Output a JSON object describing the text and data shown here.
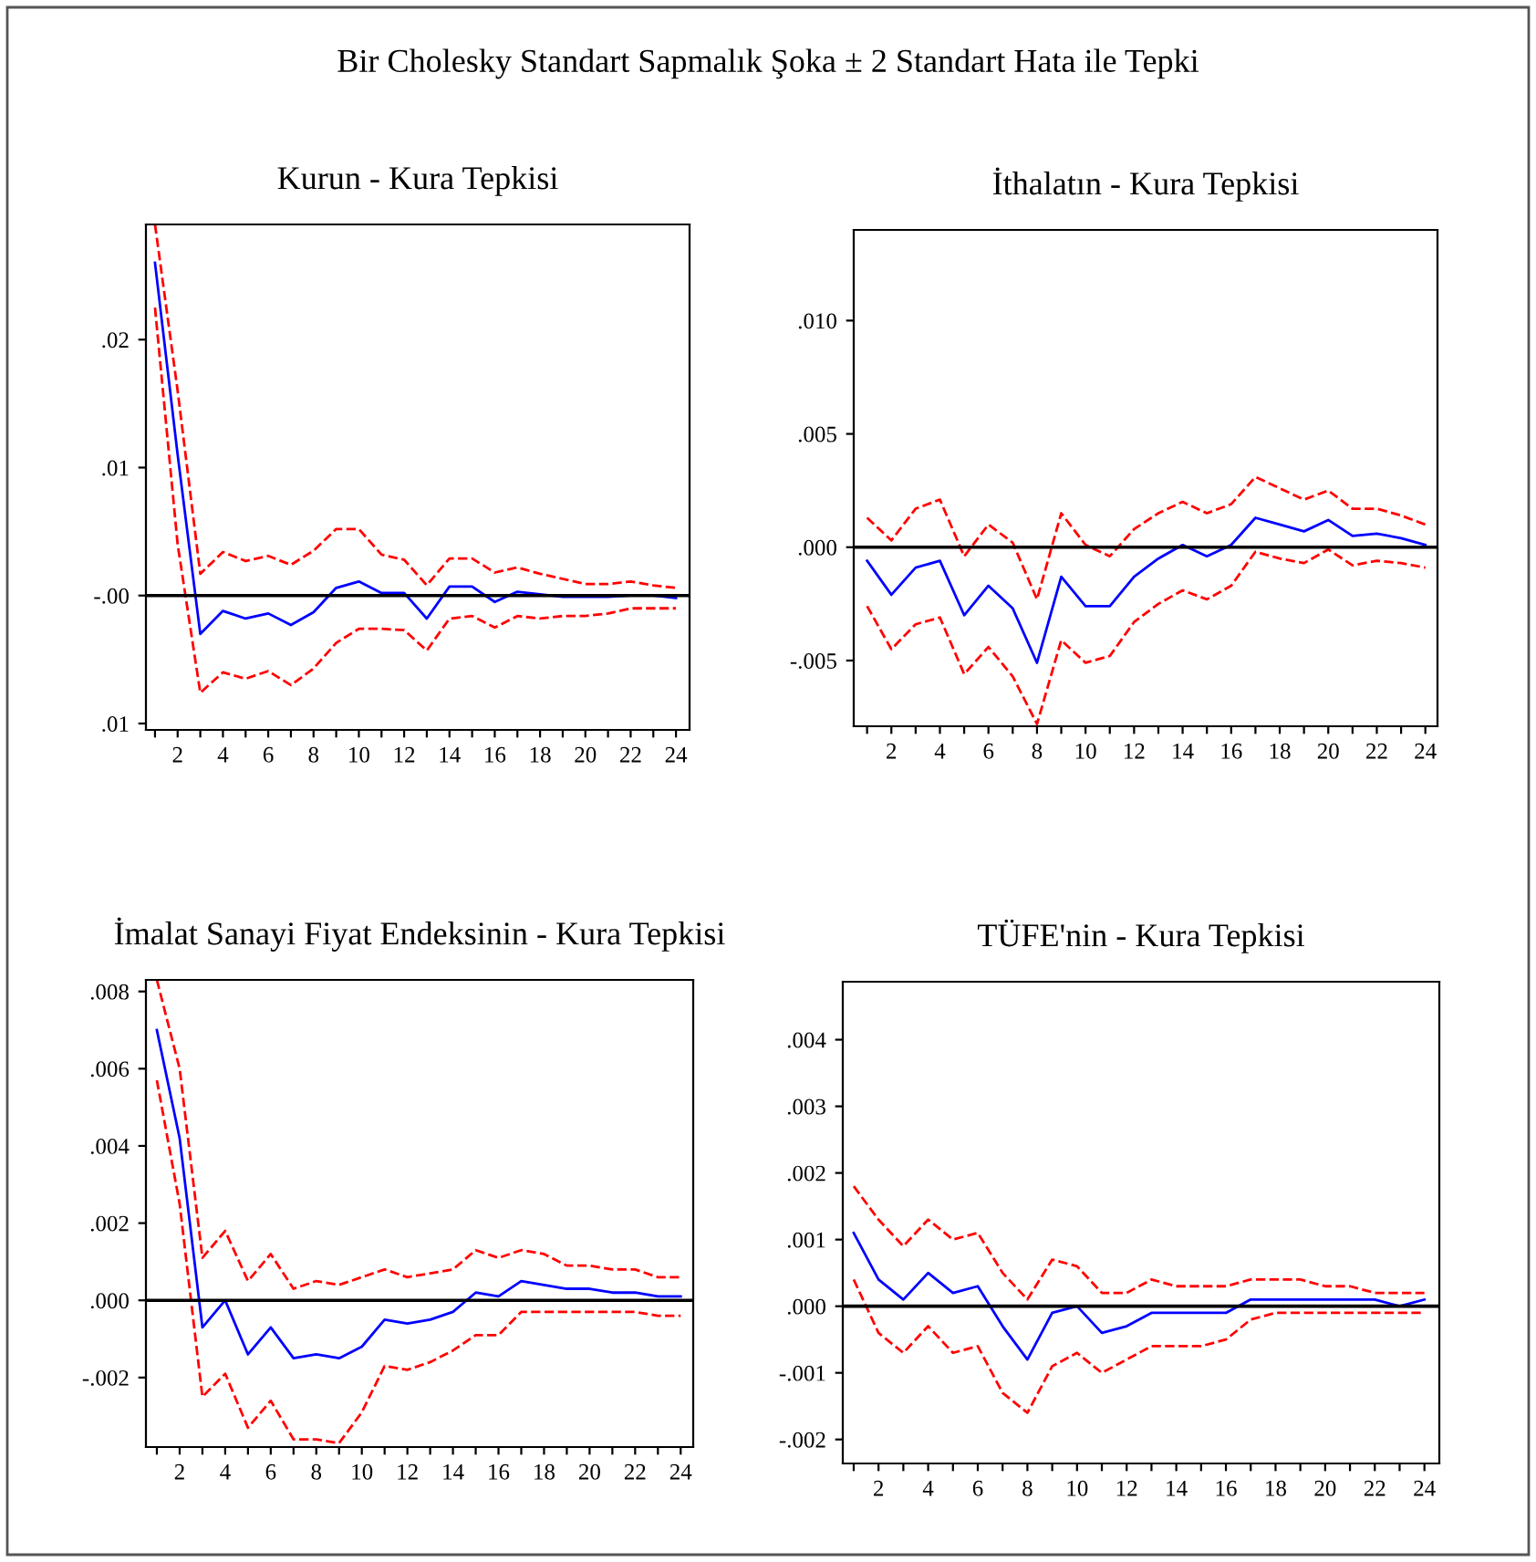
{
  "chart_data": [
    {
      "type": "line",
      "title": "Kurun - Kura Tepkisi",
      "annotations": [
        "Bir Cholesky Standart Sapmalık Şoka ± 2 Standart Hata ile Tepki"
      ],
      "x": [
        1,
        2,
        3,
        4,
        5,
        6,
        7,
        8,
        9,
        10,
        11,
        12,
        13,
        14,
        15,
        16,
        17,
        18,
        19,
        20,
        21,
        22,
        23,
        24
      ],
      "series": [
        {
          "color": "#0000ff",
          "line_style": "solid",
          "values": [
            0.026,
            0.011,
            -0.003,
            -0.0012,
            -0.0018,
            -0.0014,
            -0.0023,
            -0.0013,
            0.0006,
            0.0011,
            0.0002,
            0.0002,
            -0.0018,
            0.0007,
            0.0007,
            -0.0005,
            0.0003,
            0.0001,
            -0.0001,
            -0.0001,
            -0.0001,
            0.0,
            0.0,
            -0.0002
          ]
        },
        {
          "color": "#ff0000",
          "line_style": "dashed",
          "values": [
            0.029,
            0.016,
            0.0017,
            0.0034,
            0.0027,
            0.0031,
            0.0024,
            0.0035,
            0.0052,
            0.0052,
            0.0032,
            0.0028,
            0.0008,
            0.0029,
            0.0029,
            0.0018,
            0.0022,
            0.0017,
            0.0013,
            0.0009,
            0.0009,
            0.0011,
            0.0008,
            0.0006
          ]
        },
        {
          "color": "#ff0000",
          "line_style": "dashed",
          "values": [
            0.0225,
            0.004,
            -0.0076,
            -0.006,
            -0.0065,
            -0.0059,
            -0.007,
            -0.0057,
            -0.0037,
            -0.0026,
            -0.0026,
            -0.0027,
            -0.0043,
            -0.0018,
            -0.0016,
            -0.0025,
            -0.0016,
            -0.0018,
            -0.0016,
            -0.0016,
            -0.0014,
            -0.001,
            -0.001,
            -0.001
          ]
        }
      ],
      "xlim": [
        0.6,
        24.6
      ],
      "ylim": [
        -0.0105,
        0.029
      ],
      "xticks": [
        {
          "value": 1,
          "label": null
        },
        2,
        {
          "value": 3,
          "label": null
        },
        4,
        {
          "value": 5,
          "label": null
        },
        6,
        {
          "value": 7,
          "label": null
        },
        8,
        {
          "value": 9,
          "label": null
        },
        10,
        {
          "value": 11,
          "label": null
        },
        12,
        {
          "value": 13,
          "label": null
        },
        14,
        {
          "value": 15,
          "label": null
        },
        16,
        {
          "value": 17,
          "label": null
        },
        18,
        {
          "value": 19,
          "label": null
        },
        20,
        {
          "value": 21,
          "label": null
        },
        22,
        {
          "value": 23,
          "label": null
        },
        24
      ],
      "yticks": [
        {
          "value": 0.02,
          "label": ".02"
        },
        {
          "value": 0.01,
          "label": ".01"
        },
        {
          "value": 0,
          "label": "-.00"
        },
        {
          "value": -0.01,
          "label": ".01"
        }
      ],
      "ref_lines": [
        {
          "axis": "y",
          "value": 0,
          "color": "#000000"
        }
      ],
      "grid": false,
      "legend": false
    },
    {
      "type": "line",
      "title": "İthalatın - Kura Tepkisi",
      "x": [
        1,
        2,
        3,
        4,
        5,
        6,
        7,
        8,
        9,
        10,
        11,
        12,
        13,
        14,
        15,
        16,
        17,
        18,
        19,
        20,
        21,
        22,
        23,
        24
      ],
      "series": [
        {
          "color": "#0000ff",
          "line_style": "solid",
          "values": [
            -0.0006,
            -0.0021,
            -0.0009,
            -0.0006,
            -0.003,
            -0.0017,
            -0.0027,
            -0.0051,
            -0.0013,
            -0.0026,
            -0.0026,
            -0.0013,
            -0.0005,
            0.0001,
            -0.0004,
            0.0001,
            0.0013,
            0.001,
            0.0007,
            0.0012,
            0.0005,
            0.0006,
            0.0004,
            0.0001
          ]
        },
        {
          "color": "#ff0000",
          "line_style": "dashed",
          "values": [
            0.0013,
            0.0003,
            0.0017,
            0.0021,
            -0.0004,
            0.001,
            0.0002,
            -0.0023,
            0.0015,
            0.0001,
            -0.0004,
            0.0008,
            0.0015,
            0.002,
            0.0015,
            0.0019,
            0.0031,
            0.0026,
            0.0021,
            0.0025,
            0.0017,
            0.0017,
            0.0014,
            0.001
          ]
        },
        {
          "color": "#ff0000",
          "line_style": "dashed",
          "values": [
            -0.0026,
            -0.0045,
            -0.0034,
            -0.0031,
            -0.0056,
            -0.0044,
            -0.0057,
            -0.0078,
            -0.0041,
            -0.0051,
            -0.0048,
            -0.0033,
            -0.0025,
            -0.0019,
            -0.0023,
            -0.0017,
            -0.0002,
            -0.0005,
            -0.0007,
            -0.0001,
            -0.0008,
            -0.0006,
            -0.0007,
            -0.0009
          ]
        }
      ],
      "xlim": [
        0.45,
        24.5
      ],
      "ylim": [
        -0.0079,
        0.014
      ],
      "xticks": [
        {
          "value": 1,
          "label": null
        },
        2,
        {
          "value": 3,
          "label": null
        },
        4,
        {
          "value": 5,
          "label": null
        },
        6,
        {
          "value": 7,
          "label": null
        },
        8,
        {
          "value": 9,
          "label": null
        },
        10,
        {
          "value": 11,
          "label": null
        },
        12,
        {
          "value": 13,
          "label": null
        },
        14,
        {
          "value": 15,
          "label": null
        },
        16,
        {
          "value": 17,
          "label": null
        },
        18,
        {
          "value": 19,
          "label": null
        },
        20,
        {
          "value": 21,
          "label": null
        },
        22,
        {
          "value": 23,
          "label": null
        },
        24
      ],
      "yticks": [
        {
          "value": 0.01,
          "label": ".010"
        },
        {
          "value": 0.005,
          "label": ".005"
        },
        {
          "value": 0,
          "label": ".000"
        },
        {
          "value": -0.005,
          "label": "-.005"
        }
      ],
      "ref_lines": [
        {
          "axis": "y",
          "value": 0,
          "color": "#000000"
        }
      ],
      "grid": false,
      "legend": false
    },
    {
      "type": "line",
      "title": "İmalat Sanayi Fiyat Endeksinin - Kura Tepkisi",
      "x": [
        1,
        2,
        3,
        4,
        5,
        6,
        7,
        8,
        9,
        10,
        11,
        12,
        13,
        14,
        15,
        16,
        17,
        18,
        19,
        20,
        21,
        22,
        23,
        24
      ],
      "series": [
        {
          "color": "#0000ff",
          "line_style": "solid",
          "values": [
            0.007,
            0.0042,
            -0.0007,
            0.0,
            -0.0014,
            -0.0007,
            -0.0015,
            -0.0014,
            -0.0015,
            -0.0012,
            -0.0005,
            -0.0006,
            -0.0005,
            -0.0003,
            0.0002,
            0.0001,
            0.0005,
            0.0004,
            0.0003,
            0.0003,
            0.0002,
            0.0002,
            0.0001,
            0.0001
          ]
        },
        {
          "color": "#ff0000",
          "line_style": "dashed",
          "values": [
            0.0083,
            0.006,
            0.0011,
            0.0018,
            0.0005,
            0.0012,
            0.0003,
            0.0005,
            0.0004,
            0.0006,
            0.0008,
            0.0006,
            0.0007,
            0.0008,
            0.0013,
            0.0011,
            0.0013,
            0.0012,
            0.0009,
            0.0009,
            0.0008,
            0.0008,
            0.0006,
            0.0006
          ]
        },
        {
          "color": "#ff0000",
          "line_style": "dashed",
          "values": [
            0.0057,
            0.0025,
            -0.0025,
            -0.0019,
            -0.0033,
            -0.0026,
            -0.0036,
            -0.0036,
            -0.0037,
            -0.0029,
            -0.0017,
            -0.0018,
            -0.0016,
            -0.0013,
            -0.0009,
            -0.0009,
            -0.0003,
            -0.0003,
            -0.0003,
            -0.0003,
            -0.0003,
            -0.0003,
            -0.0004,
            -0.0004
          ]
        }
      ],
      "xlim": [
        0.52,
        24.55
      ],
      "ylim": [
        -0.0038,
        0.0083
      ],
      "xticks": [
        {
          "value": 1,
          "label": null
        },
        2,
        {
          "value": 3,
          "label": null
        },
        4,
        {
          "value": 5,
          "label": null
        },
        6,
        {
          "value": 7,
          "label": null
        },
        8,
        {
          "value": 9,
          "label": null
        },
        10,
        {
          "value": 11,
          "label": null
        },
        12,
        {
          "value": 13,
          "label": null
        },
        14,
        {
          "value": 15,
          "label": null
        },
        16,
        {
          "value": 17,
          "label": null
        },
        18,
        {
          "value": 19,
          "label": null
        },
        20,
        {
          "value": 21,
          "label": null
        },
        22,
        {
          "value": 23,
          "label": null
        },
        24
      ],
      "yticks": [
        {
          "value": 0.008,
          "label": ".008"
        },
        {
          "value": 0.006,
          "label": ".006"
        },
        {
          "value": 0.004,
          "label": ".004"
        },
        {
          "value": 0.002,
          "label": ".002"
        },
        {
          "value": 0,
          "label": ".000"
        },
        {
          "value": -0.002,
          "label": "-.002"
        }
      ],
      "ref_lines": [
        {
          "axis": "y",
          "value": 0,
          "color": "#000000"
        }
      ],
      "grid": false,
      "legend": false
    },
    {
      "type": "line",
      "title": "TÜFE'nin - Kura Tepkisi",
      "x": [
        1,
        2,
        3,
        4,
        5,
        6,
        7,
        8,
        9,
        10,
        11,
        12,
        13,
        14,
        15,
        16,
        17,
        18,
        19,
        20,
        21,
        22,
        23,
        24
      ],
      "series": [
        {
          "color": "#0000ff",
          "line_style": "solid",
          "values": [
            0.0011,
            0.0004,
            0.0001,
            0.0005,
            0.0002,
            0.0003,
            -0.0003,
            -0.0008,
            -0.0001,
            0.0,
            -0.0004,
            -0.0003,
            -0.0001,
            -0.0001,
            -0.0001,
            -0.0001,
            0.0001,
            0.0001,
            0.0001,
            0.0001,
            0.0001,
            0.0001,
            0.0,
            0.0001
          ]
        },
        {
          "color": "#ff0000",
          "line_style": "dashed",
          "values": [
            0.0018,
            0.0013,
            0.0009,
            0.0013,
            0.001,
            0.0011,
            0.0005,
            0.0001,
            0.0007,
            0.0006,
            0.0002,
            0.0002,
            0.0004,
            0.0003,
            0.0003,
            0.0003,
            0.0004,
            0.0004,
            0.0004,
            0.0003,
            0.0003,
            0.0002,
            0.0002,
            0.0002
          ]
        },
        {
          "color": "#ff0000",
          "line_style": "dashed",
          "values": [
            0.0004,
            -0.0004,
            -0.0007,
            -0.0003,
            -0.0007,
            -0.0006,
            -0.0013,
            -0.0016,
            -0.0009,
            -0.0007,
            -0.001,
            -0.0008,
            -0.0006,
            -0.0006,
            -0.0006,
            -0.0005,
            -0.0002,
            -0.0001,
            -0.0001,
            -0.0001,
            -0.0001,
            -0.0001,
            -0.0001,
            -0.0001
          ]
        }
      ],
      "xlim": [
        0.56,
        24.6
      ],
      "ylim": [
        -0.00236,
        0.00487
      ],
      "xticks": [
        {
          "value": 1,
          "label": null
        },
        2,
        {
          "value": 3,
          "label": null
        },
        4,
        {
          "value": 5,
          "label": null
        },
        6,
        {
          "value": 7,
          "label": null
        },
        8,
        {
          "value": 9,
          "label": null
        },
        10,
        {
          "value": 11,
          "label": null
        },
        12,
        {
          "value": 13,
          "label": null
        },
        14,
        {
          "value": 15,
          "label": null
        },
        16,
        {
          "value": 17,
          "label": null
        },
        18,
        {
          "value": 19,
          "label": null
        },
        20,
        {
          "value": 21,
          "label": null
        },
        22,
        {
          "value": 23,
          "label": null
        },
        24
      ],
      "yticks": [
        {
          "value": 0.004,
          "label": ".004"
        },
        {
          "value": 0.003,
          "label": ".003"
        },
        {
          "value": 0.002,
          "label": ".002"
        },
        {
          "value": 0.001,
          "label": ".001"
        },
        {
          "value": 0,
          "label": ".000"
        },
        {
          "value": -0.001,
          "label": "-.001"
        },
        {
          "value": -0.002,
          "label": "-.002"
        }
      ],
      "ref_lines": [
        {
          "axis": "y",
          "value": 0,
          "color": "#000000"
        }
      ],
      "grid": false,
      "legend": false
    }
  ]
}
